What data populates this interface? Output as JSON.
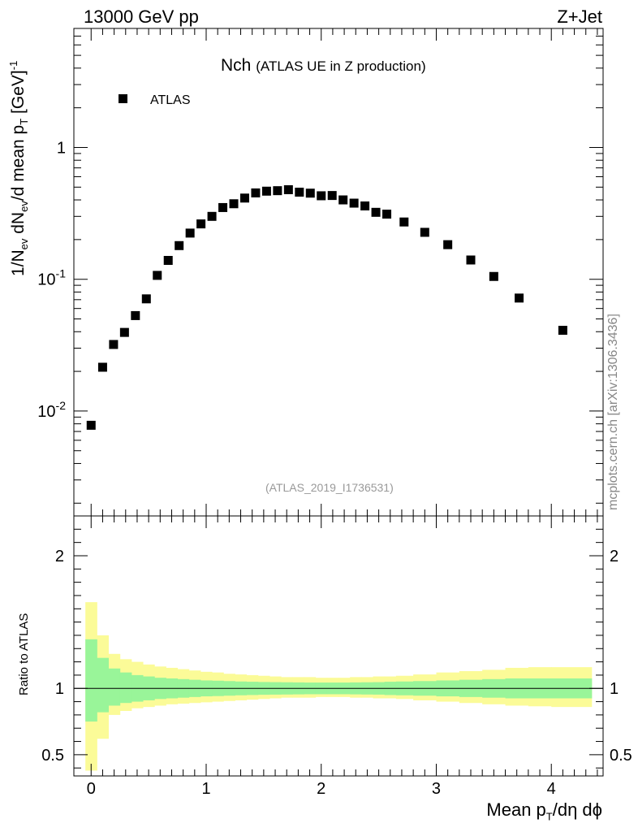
{
  "header": {
    "left_label": "13000 GeV pp",
    "right_label": "Z+Jet"
  },
  "side_label": "mcplots.cern.ch [arXiv:1306.3436]",
  "chart_data": [
    {
      "type": "scatter",
      "title": "Nch",
      "subtitle": "(ATLAS UE in Z production)",
      "reference": "(ATLAS_2019_I1736531)",
      "legend": {
        "label": "ATLAS",
        "placement": "top-left"
      },
      "ylabel": {
        "main": "1/N",
        "sub1": "ev",
        "mid1": " dN",
        "sub2": "ev",
        "mid2": "/d mean p",
        "sub3": "T",
        "unit": " [GeV]",
        "sup": "-1"
      },
      "yscale": "log",
      "ylim": [
        0.0016,
        8
      ],
      "xlim": [
        -0.15,
        4.45
      ],
      "y_ticks": [
        {
          "value": 0.01,
          "base": "10",
          "exp": "-2"
        },
        {
          "value": 0.1,
          "base": "10",
          "exp": "-1"
        },
        {
          "value": 1,
          "base": "1",
          "exp": ""
        }
      ],
      "series": [
        {
          "name": "ATLAS",
          "x": [
            0,
            0.1,
            0.195,
            0.29,
            0.385,
            0.48,
            0.575,
            0.67,
            0.765,
            0.86,
            0.955,
            1.05,
            1.145,
            1.24,
            1.335,
            1.43,
            1.525,
            1.62,
            1.715,
            1.81,
            1.905,
            2.0,
            2.095,
            2.19,
            2.285,
            2.38,
            2.475,
            2.57,
            2.72,
            2.9,
            3.1,
            3.3,
            3.5,
            3.72,
            4.1
          ],
          "y": [
            0.0078,
            0.0215,
            0.032,
            0.0395,
            0.053,
            0.071,
            0.107,
            0.139,
            0.18,
            0.224,
            0.263,
            0.3,
            0.35,
            0.374,
            0.413,
            0.452,
            0.466,
            0.47,
            0.478,
            0.458,
            0.45,
            0.43,
            0.432,
            0.4,
            0.378,
            0.36,
            0.322,
            0.312,
            0.272,
            0.227,
            0.183,
            0.14,
            0.105,
            0.072,
            0.041
          ]
        }
      ]
    },
    {
      "type": "area",
      "ylabel": "Ratio to ATLAS",
      "xlabel": {
        "main": "Mean p",
        "sub": "T",
        "rest": "/dη dϕ"
      },
      "ylim": [
        0.34,
        2.3
      ],
      "xlim": [
        -0.15,
        4.45
      ],
      "y_ticks": [
        0.5,
        1,
        2
      ],
      "x_ticks": [
        0,
        1,
        2,
        3,
        4
      ],
      "reference_line": 1,
      "bands": {
        "edges": [
          -0.05,
          0.05,
          0.15,
          0.25,
          0.35,
          0.45,
          0.55,
          0.65,
          0.75,
          0.85,
          0.95,
          1.05,
          1.15,
          1.25,
          1.35,
          1.45,
          1.55,
          1.65,
          1.75,
          1.85,
          1.95,
          2.05,
          2.15,
          2.25,
          2.35,
          2.45,
          2.55,
          2.65,
          2.8,
          3.0,
          3.2,
          3.4,
          3.6,
          3.8,
          4.0,
          4.35
        ],
        "green_up": [
          0.37,
          0.23,
          0.15,
          0.12,
          0.1,
          0.09,
          0.08,
          0.075,
          0.07,
          0.065,
          0.06,
          0.058,
          0.055,
          0.052,
          0.05,
          0.048,
          0.047,
          0.046,
          0.045,
          0.044,
          0.044,
          0.044,
          0.044,
          0.045,
          0.046,
          0.047,
          0.05,
          0.052,
          0.055,
          0.06,
          0.065,
          0.07,
          0.075,
          0.075,
          0.075
        ],
        "green_down": [
          0.25,
          0.18,
          0.13,
          0.11,
          0.1,
          0.09,
          0.08,
          0.075,
          0.07,
          0.065,
          0.06,
          0.058,
          0.055,
          0.052,
          0.05,
          0.048,
          0.047,
          0.046,
          0.045,
          0.044,
          0.044,
          0.044,
          0.044,
          0.045,
          0.046,
          0.047,
          0.05,
          0.052,
          0.055,
          0.06,
          0.065,
          0.07,
          0.075,
          0.075,
          0.075
        ],
        "yellow_up": [
          0.65,
          0.4,
          0.26,
          0.22,
          0.2,
          0.18,
          0.165,
          0.155,
          0.145,
          0.135,
          0.125,
          0.12,
          0.11,
          0.105,
          0.1,
          0.095,
          0.09,
          0.085,
          0.085,
          0.085,
          0.08,
          0.08,
          0.08,
          0.085,
          0.085,
          0.09,
          0.09,
          0.095,
          0.105,
          0.12,
          0.13,
          0.14,
          0.155,
          0.16,
          0.16
        ],
        "yellow_down": [
          0.62,
          0.38,
          0.2,
          0.17,
          0.15,
          0.14,
          0.13,
          0.12,
          0.115,
          0.11,
          0.105,
          0.1,
          0.095,
          0.09,
          0.085,
          0.08,
          0.075,
          0.07,
          0.07,
          0.07,
          0.065,
          0.065,
          0.065,
          0.07,
          0.07,
          0.075,
          0.075,
          0.08,
          0.09,
          0.1,
          0.11,
          0.12,
          0.13,
          0.135,
          0.14
        ]
      },
      "colors": {
        "green": "#99f599",
        "yellow": "#fbfb98"
      }
    }
  ]
}
